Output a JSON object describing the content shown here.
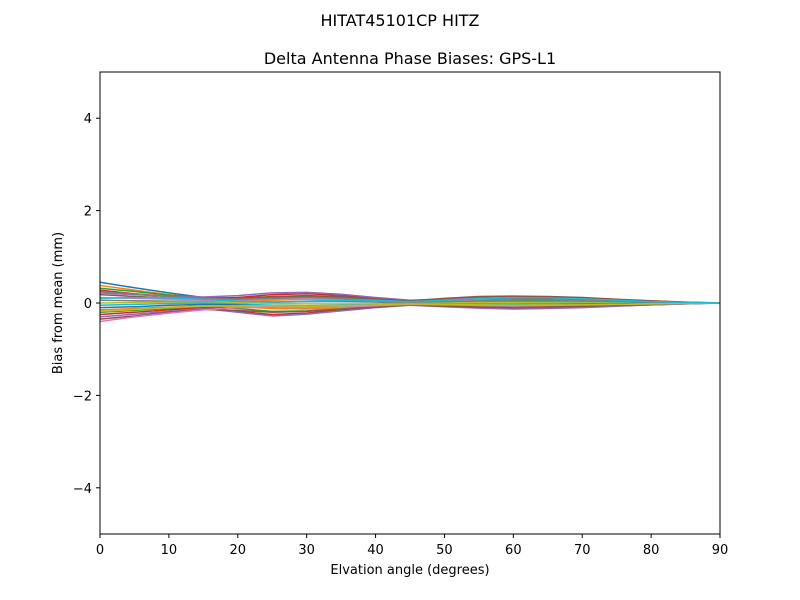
{
  "figure": {
    "suptitle": "HITAT45101CP    HITZ"
  },
  "chart_data": {
    "type": "line",
    "title": "Delta Antenna Phase Biases: GPS-L1",
    "xlabel": "Elvation angle (degrees)",
    "ylabel": "Bias from mean (mm)",
    "xlim": [
      0,
      90
    ],
    "ylim": [
      -5,
      5
    ],
    "xticks": [
      0,
      10,
      20,
      30,
      40,
      50,
      60,
      70,
      80,
      90
    ],
    "yticks": [
      -4,
      -2,
      0,
      2,
      4
    ],
    "ytick_labels": [
      "−4",
      "−2",
      "0",
      "2",
      "4"
    ],
    "grid": false,
    "x": [
      0,
      5,
      10,
      15,
      20,
      25,
      30,
      35,
      40,
      45,
      50,
      55,
      60,
      65,
      70,
      75,
      80,
      85,
      90
    ],
    "series_colors": [
      "#1f77b4",
      "#ff7f0e",
      "#2ca02c",
      "#d62728",
      "#9467bd",
      "#8c564b",
      "#e377c2",
      "#7f7f7f",
      "#bcbd22",
      "#17becf"
    ],
    "series": [
      {
        "values": [
          0.45,
          0.33,
          0.22,
          0.12,
          0.05,
          0.02,
          0.03,
          0.05,
          0.05,
          0.03,
          0.01,
          0.01,
          0.02,
          0.03,
          0.03,
          0.02,
          0.01,
          0.0,
          0.0
        ]
      },
      {
        "values": [
          0.38,
          0.28,
          0.18,
          0.1,
          0.06,
          0.06,
          0.08,
          0.07,
          0.04,
          0.01,
          -0.01,
          0.0,
          0.02,
          0.03,
          0.03,
          0.02,
          0.01,
          0.0,
          0.0
        ]
      },
      {
        "values": [
          0.32,
          0.25,
          0.17,
          0.12,
          0.1,
          0.12,
          0.14,
          0.12,
          0.07,
          0.02,
          0.02,
          0.04,
          0.06,
          0.06,
          0.05,
          0.03,
          0.02,
          0.01,
          0.0
        ]
      },
      {
        "values": [
          0.28,
          0.2,
          0.14,
          0.1,
          0.12,
          0.18,
          0.2,
          0.17,
          0.1,
          0.04,
          0.05,
          0.08,
          0.1,
          0.1,
          0.08,
          0.06,
          0.03,
          0.01,
          0.0
        ]
      },
      {
        "values": [
          0.22,
          0.18,
          0.15,
          0.13,
          0.16,
          0.22,
          0.23,
          0.19,
          0.12,
          0.06,
          0.08,
          0.12,
          0.14,
          0.13,
          0.11,
          0.07,
          0.04,
          0.02,
          0.0
        ]
      },
      {
        "values": [
          0.18,
          0.14,
          0.11,
          0.09,
          0.1,
          0.14,
          0.16,
          0.14,
          0.09,
          0.05,
          0.1,
          0.14,
          0.15,
          0.14,
          0.12,
          0.08,
          0.05,
          0.02,
          0.0
        ]
      },
      {
        "values": [
          0.12,
          0.1,
          0.08,
          0.06,
          0.06,
          0.08,
          0.09,
          0.08,
          0.05,
          0.02,
          0.04,
          0.06,
          0.07,
          0.07,
          0.06,
          0.04,
          0.02,
          0.01,
          0.0
        ]
      },
      {
        "values": [
          0.06,
          0.05,
          0.04,
          0.03,
          0.02,
          0.02,
          0.03,
          0.03,
          0.02,
          0.0,
          0.01,
          0.02,
          0.03,
          0.03,
          0.02,
          0.01,
          0.01,
          0.0,
          0.0
        ]
      },
      {
        "values": [
          0.0,
          0.01,
          0.02,
          0.02,
          0.01,
          -0.01,
          -0.02,
          -0.02,
          -0.02,
          -0.01,
          0.0,
          0.01,
          0.01,
          0.01,
          0.01,
          0.0,
          0.0,
          0.0,
          0.0
        ]
      },
      {
        "values": [
          -0.05,
          -0.03,
          -0.01,
          0.0,
          -0.02,
          -0.05,
          -0.06,
          -0.05,
          -0.03,
          -0.01,
          -0.02,
          -0.02,
          -0.02,
          -0.01,
          -0.01,
          -0.01,
          0.0,
          0.0,
          0.0
        ]
      },
      {
        "values": [
          -0.1,
          -0.08,
          -0.05,
          -0.03,
          -0.04,
          -0.08,
          -0.1,
          -0.08,
          -0.05,
          -0.02,
          -0.04,
          -0.05,
          -0.05,
          -0.04,
          -0.03,
          -0.02,
          -0.01,
          0.0,
          0.0
        ]
      },
      {
        "values": [
          -0.15,
          -0.12,
          -0.09,
          -0.06,
          -0.08,
          -0.12,
          -0.13,
          -0.11,
          -0.06,
          -0.02,
          -0.05,
          -0.07,
          -0.08,
          -0.07,
          -0.05,
          -0.03,
          -0.02,
          -0.01,
          0.0
        ]
      },
      {
        "values": [
          -0.2,
          -0.16,
          -0.12,
          -0.08,
          -0.12,
          -0.18,
          -0.17,
          -0.13,
          -0.07,
          -0.03,
          -0.06,
          -0.09,
          -0.1,
          -0.09,
          -0.07,
          -0.05,
          -0.03,
          -0.01,
          0.0
        ]
      },
      {
        "values": [
          -0.25,
          -0.2,
          -0.15,
          -0.1,
          -0.18,
          -0.25,
          -0.22,
          -0.15,
          -0.08,
          -0.04,
          -0.07,
          -0.1,
          -0.12,
          -0.11,
          -0.09,
          -0.06,
          -0.04,
          -0.02,
          0.0
        ]
      },
      {
        "values": [
          -0.3,
          -0.24,
          -0.18,
          -0.12,
          -0.2,
          -0.28,
          -0.24,
          -0.17,
          -0.1,
          -0.05,
          -0.08,
          -0.11,
          -0.13,
          -0.12,
          -0.1,
          -0.07,
          -0.04,
          -0.02,
          0.0
        ]
      },
      {
        "values": [
          -0.35,
          -0.28,
          -0.2,
          -0.14,
          -0.16,
          -0.2,
          -0.18,
          -0.14,
          -0.09,
          -0.04,
          -0.07,
          -0.09,
          -0.1,
          -0.09,
          -0.07,
          -0.05,
          -0.03,
          -0.01,
          0.0
        ]
      },
      {
        "values": [
          -0.4,
          -0.3,
          -0.22,
          -0.15,
          -0.1,
          -0.09,
          -0.1,
          -0.09,
          -0.06,
          -0.03,
          -0.04,
          -0.05,
          -0.06,
          -0.05,
          -0.04,
          -0.03,
          -0.02,
          -0.01,
          0.0
        ]
      },
      {
        "values": [
          0.25,
          0.19,
          0.14,
          0.1,
          0.08,
          0.1,
          0.12,
          0.1,
          0.06,
          0.02,
          0.03,
          0.05,
          0.07,
          0.07,
          0.06,
          0.04,
          0.02,
          0.01,
          0.0
        ]
      },
      {
        "values": [
          -0.18,
          -0.14,
          -0.1,
          -0.07,
          -0.06,
          -0.06,
          -0.07,
          -0.06,
          -0.04,
          -0.02,
          -0.03,
          -0.04,
          -0.05,
          -0.04,
          -0.04,
          -0.03,
          -0.02,
          -0.01,
          0.0
        ]
      },
      {
        "values": [
          0.1,
          0.12,
          0.11,
          0.08,
          0.04,
          0.02,
          0.04,
          0.06,
          0.06,
          0.03,
          0.06,
          0.09,
          0.11,
          0.11,
          0.09,
          0.06,
          0.03,
          0.01,
          0.0
        ]
      }
    ]
  }
}
